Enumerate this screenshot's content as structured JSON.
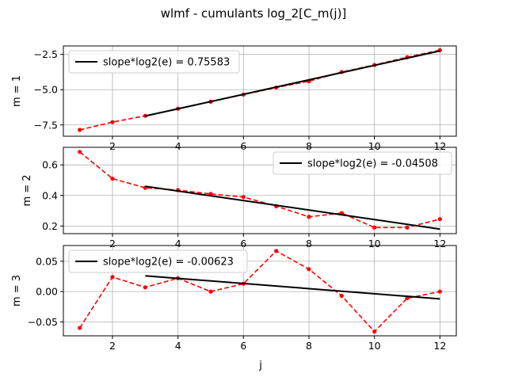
{
  "chart_data": {
    "type": "line",
    "title": "wlmf - cumulants log_2[C_m(j)]",
    "xlabel": "j",
    "grid": true,
    "panels": [
      {
        "ylabel": "m = 1",
        "xlim": [
          0.5,
          12.5
        ],
        "ylim": [
          -8.3,
          -1.9
        ],
        "xticks": [
          2,
          4,
          6,
          8,
          10,
          12
        ],
        "yticks": [
          -7.5,
          -5.0,
          -2.5
        ],
        "ytick_labels": [
          "−7.5",
          "−5.0",
          "−2.5"
        ],
        "legend": "top-left",
        "series": [
          {
            "values_x": [
              1,
              2,
              3,
              4,
              5,
              6,
              7,
              8,
              9,
              10,
              11,
              12
            ],
            "values_y": [
              -7.85,
              -7.3,
              -6.85,
              -6.35,
              -5.85,
              -5.35,
              -4.85,
              -4.4,
              -3.75,
              -3.25,
              -2.7,
              -2.2
            ],
            "color": "#ff0000",
            "style": "dashed-markers"
          },
          {
            "name": "slope*log2(e) = 0.75583",
            "values_x": [
              3,
              12
            ],
            "values_y": [
              -6.87,
              -2.25
            ],
            "color": "#000000",
            "style": "solid"
          }
        ]
      },
      {
        "ylabel": "m = 2",
        "xlim": [
          0.5,
          12.5
        ],
        "ylim": [
          0.15,
          0.715
        ],
        "xticks": [
          2,
          4,
          6,
          8,
          10,
          12
        ],
        "yticks": [
          0.2,
          0.4,
          0.6
        ],
        "ytick_labels": [
          "0.2",
          "0.4",
          "0.6"
        ],
        "legend": "top-right",
        "series": [
          {
            "values_x": [
              1,
              2,
              3,
              4,
              5,
              6,
              7,
              8,
              9,
              10,
              11,
              12
            ],
            "values_y": [
              0.685,
              0.51,
              0.45,
              0.435,
              0.41,
              0.39,
              0.33,
              0.26,
              0.285,
              0.19,
              0.19,
              0.245
            ],
            "color": "#ff0000",
            "style": "dashed-markers"
          },
          {
            "name": "slope*log2(e) = -0.04508",
            "values_x": [
              3,
              12
            ],
            "values_y": [
              0.46,
              0.18
            ],
            "color": "#000000",
            "style": "solid"
          }
        ]
      },
      {
        "ylabel": "m = 3",
        "xlim": [
          0.5,
          12.5
        ],
        "ylim": [
          -0.073,
          0.076
        ],
        "xticks": [
          2,
          4,
          6,
          8,
          10,
          12
        ],
        "yticks": [
          -0.05,
          0.0,
          0.05
        ],
        "ytick_labels": [
          "−0.05",
          "0.00",
          "0.05"
        ],
        "legend": "top-left",
        "series": [
          {
            "values_x": [
              1,
              2,
              3,
              4,
              5,
              6,
              7,
              8,
              9,
              10,
              11,
              12
            ],
            "values_y": [
              -0.06,
              0.024,
              0.007,
              0.022,
              0.0,
              0.013,
              0.067,
              0.037,
              -0.007,
              -0.066,
              -0.011,
              0.0
            ],
            "color": "#ff0000",
            "style": "dashed-markers"
          },
          {
            "name": "slope*log2(e) = -0.00623",
            "values_x": [
              3,
              12
            ],
            "values_y": [
              0.026,
              -0.012
            ],
            "color": "#000000",
            "style": "solid"
          }
        ]
      }
    ]
  }
}
